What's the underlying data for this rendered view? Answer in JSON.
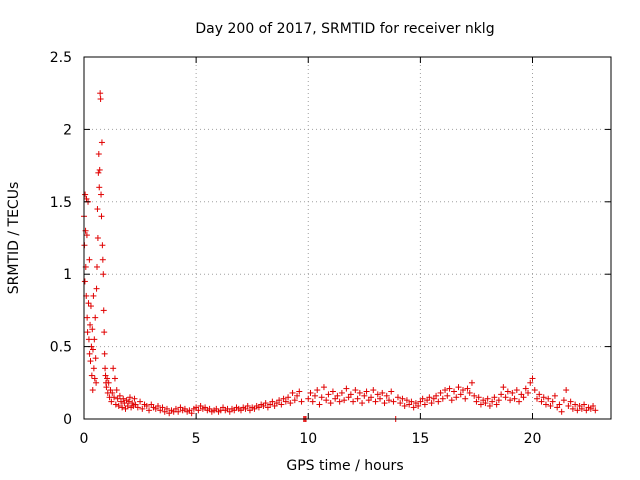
{
  "chart_data": {
    "type": "scatter",
    "title": "Day 200 of 2017, SRMTID for receiver nklg",
    "xlabel": "GPS time / hours",
    "ylabel": "SRMTID / TECUs",
    "xlim": [
      0,
      23.5
    ],
    "ylim": [
      0,
      2.5
    ],
    "xticks": [
      0,
      5,
      10,
      15,
      20
    ],
    "xtick_labels": [
      "0",
      "5",
      "10",
      "15",
      "20"
    ],
    "yticks": [
      0,
      0.5,
      1,
      1.5,
      2,
      2.5
    ],
    "ytick_labels": [
      "0",
      "0.5",
      "1",
      "1.5",
      "2",
      "2.5"
    ],
    "grid": true,
    "marker": "+",
    "color": "#e00000",
    "series": [
      {
        "name": "SRMTID",
        "points": [
          [
            0.0,
            1.4
          ],
          [
            0.02,
            1.2
          ],
          [
            0.04,
            0.95
          ],
          [
            0.05,
            1.55
          ],
          [
            0.07,
            1.3
          ],
          [
            0.08,
            1.05
          ],
          [
            0.1,
            0.85
          ],
          [
            0.11,
            1.52
          ],
          [
            0.13,
            1.27
          ],
          [
            0.14,
            0.7
          ],
          [
            0.16,
            0.6
          ],
          [
            0.18,
            1.5
          ],
          [
            0.2,
            0.8
          ],
          [
            0.22,
            0.55
          ],
          [
            0.24,
            1.1
          ],
          [
            0.25,
            0.45
          ],
          [
            0.27,
            0.65
          ],
          [
            0.29,
            0.4
          ],
          [
            0.31,
            0.78
          ],
          [
            0.33,
            0.5
          ],
          [
            0.35,
            0.3
          ],
          [
            0.37,
            0.62
          ],
          [
            0.39,
            0.2
          ],
          [
            0.4,
            0.48
          ],
          [
            0.42,
            0.85
          ],
          [
            0.44,
            0.35
          ],
          [
            0.46,
            0.55
          ],
          [
            0.48,
            0.28
          ],
          [
            0.5,
            0.7
          ],
          [
            0.52,
            0.42
          ],
          [
            0.54,
            0.25
          ],
          [
            0.56,
            0.9
          ],
          [
            0.58,
            1.05
          ],
          [
            0.6,
            1.45
          ],
          [
            0.62,
            1.25
          ],
          [
            0.64,
            1.7
          ],
          [
            0.66,
            1.83
          ],
          [
            0.68,
            1.6
          ],
          [
            0.7,
            1.72
          ],
          [
            0.72,
            2.25
          ],
          [
            0.74,
            2.21
          ],
          [
            0.76,
            1.55
          ],
          [
            0.78,
            1.4
          ],
          [
            0.8,
            1.91
          ],
          [
            0.82,
            1.2
          ],
          [
            0.84,
            1.1
          ],
          [
            0.86,
            1.0
          ],
          [
            0.88,
            0.75
          ],
          [
            0.9,
            0.6
          ],
          [
            0.92,
            0.45
          ],
          [
            0.94,
            0.35
          ],
          [
            0.96,
            0.3
          ],
          [
            0.98,
            0.25
          ],
          [
            1.0,
            0.22
          ],
          [
            1.03,
            0.28
          ],
          [
            1.06,
            0.18
          ],
          [
            1.1,
            0.25
          ],
          [
            1.14,
            0.15
          ],
          [
            1.18,
            0.2
          ],
          [
            1.22,
            0.12
          ],
          [
            1.26,
            0.18
          ],
          [
            1.3,
            0.35
          ],
          [
            1.34,
            0.15
          ],
          [
            1.38,
            0.28
          ],
          [
            1.42,
            0.1
          ],
          [
            1.46,
            0.2
          ],
          [
            1.5,
            0.14
          ],
          [
            1.55,
            0.09
          ],
          [
            1.6,
            0.16
          ],
          [
            1.65,
            0.12
          ],
          [
            1.7,
            0.08
          ],
          [
            1.75,
            0.14
          ],
          [
            1.8,
            0.11
          ],
          [
            1.85,
            0.07
          ],
          [
            1.9,
            0.13
          ],
          [
            1.95,
            0.09
          ],
          [
            2.0,
            0.12
          ],
          [
            2.05,
            0.15
          ],
          [
            2.1,
            0.08
          ],
          [
            2.15,
            0.11
          ],
          [
            2.2,
            0.09
          ],
          [
            2.25,
            0.14
          ],
          [
            2.3,
            0.1
          ],
          [
            2.4,
            0.08
          ],
          [
            2.5,
            0.12
          ],
          [
            2.6,
            0.07
          ],
          [
            2.7,
            0.1
          ],
          [
            2.8,
            0.09
          ],
          [
            2.9,
            0.06
          ],
          [
            3.0,
            0.1
          ],
          [
            3.1,
            0.08
          ],
          [
            3.2,
            0.07
          ],
          [
            3.3,
            0.09
          ],
          [
            3.4,
            0.06
          ],
          [
            3.5,
            0.08
          ],
          [
            3.6,
            0.05
          ],
          [
            3.7,
            0.07
          ],
          [
            3.8,
            0.04
          ],
          [
            3.9,
            0.06
          ],
          [
            4.0,
            0.05
          ],
          [
            4.1,
            0.07
          ],
          [
            4.2,
            0.05
          ],
          [
            4.3,
            0.08
          ],
          [
            4.4,
            0.06
          ],
          [
            4.5,
            0.07
          ],
          [
            4.6,
            0.05
          ],
          [
            4.7,
            0.06
          ],
          [
            4.8,
            0.04
          ],
          [
            4.9,
            0.07
          ],
          [
            5.0,
            0.08
          ],
          [
            5.1,
            0.06
          ],
          [
            5.2,
            0.09
          ],
          [
            5.3,
            0.07
          ],
          [
            5.4,
            0.08
          ],
          [
            5.5,
            0.06
          ],
          [
            5.6,
            0.07
          ],
          [
            5.7,
            0.05
          ],
          [
            5.8,
            0.06
          ],
          [
            5.9,
            0.07
          ],
          [
            6.0,
            0.05
          ],
          [
            6.1,
            0.06
          ],
          [
            6.2,
            0.08
          ],
          [
            6.3,
            0.06
          ],
          [
            6.4,
            0.07
          ],
          [
            6.5,
            0.05
          ],
          [
            6.6,
            0.07
          ],
          [
            6.7,
            0.06
          ],
          [
            6.8,
            0.08
          ],
          [
            6.9,
            0.07
          ],
          [
            7.0,
            0.06
          ],
          [
            7.1,
            0.08
          ],
          [
            7.2,
            0.07
          ],
          [
            7.3,
            0.09
          ],
          [
            7.4,
            0.06
          ],
          [
            7.5,
            0.08
          ],
          [
            7.6,
            0.07
          ],
          [
            7.7,
            0.09
          ],
          [
            7.8,
            0.08
          ],
          [
            7.9,
            0.1
          ],
          [
            8.0,
            0.09
          ],
          [
            8.1,
            0.11
          ],
          [
            8.2,
            0.08
          ],
          [
            8.3,
            0.1
          ],
          [
            8.4,
            0.12
          ],
          [
            8.5,
            0.09
          ],
          [
            8.6,
            0.11
          ],
          [
            8.7,
            0.13
          ],
          [
            8.8,
            0.1
          ],
          [
            8.9,
            0.14
          ],
          [
            9.0,
            0.12
          ],
          [
            9.1,
            0.15
          ],
          [
            9.2,
            0.11
          ],
          [
            9.3,
            0.18
          ],
          [
            9.4,
            0.13
          ],
          [
            9.5,
            0.16
          ],
          [
            9.6,
            0.19
          ],
          [
            9.7,
            0.12
          ],
          [
            9.8,
            0.0
          ],
          [
            9.85,
            0.0
          ],
          [
            9.9,
            0.0
          ],
          [
            10.0,
            0.14
          ],
          [
            10.1,
            0.18
          ],
          [
            10.2,
            0.12
          ],
          [
            10.3,
            0.16
          ],
          [
            10.4,
            0.2
          ],
          [
            10.5,
            0.1
          ],
          [
            10.6,
            0.15
          ],
          [
            10.7,
            0.22
          ],
          [
            10.8,
            0.13
          ],
          [
            10.9,
            0.17
          ],
          [
            11.0,
            0.11
          ],
          [
            11.1,
            0.19
          ],
          [
            11.2,
            0.14
          ],
          [
            11.3,
            0.16
          ],
          [
            11.4,
            0.12
          ],
          [
            11.5,
            0.18
          ],
          [
            11.6,
            0.13
          ],
          [
            11.7,
            0.21
          ],
          [
            11.8,
            0.15
          ],
          [
            11.9,
            0.17
          ],
          [
            12.0,
            0.12
          ],
          [
            12.1,
            0.2
          ],
          [
            12.2,
            0.14
          ],
          [
            12.3,
            0.18
          ],
          [
            12.4,
            0.11
          ],
          [
            12.5,
            0.16
          ],
          [
            12.6,
            0.19
          ],
          [
            12.7,
            0.13
          ],
          [
            12.8,
            0.15
          ],
          [
            12.9,
            0.2
          ],
          [
            13.0,
            0.12
          ],
          [
            13.1,
            0.17
          ],
          [
            13.2,
            0.14
          ],
          [
            13.3,
            0.18
          ],
          [
            13.4,
            0.11
          ],
          [
            13.5,
            0.16
          ],
          [
            13.6,
            0.13
          ],
          [
            13.7,
            0.19
          ],
          [
            13.8,
            0.12
          ],
          [
            13.9,
            0.0
          ],
          [
            14.0,
            0.15
          ],
          [
            14.1,
            0.11
          ],
          [
            14.2,
            0.14
          ],
          [
            14.3,
            0.09
          ],
          [
            14.4,
            0.13
          ],
          [
            14.5,
            0.1
          ],
          [
            14.6,
            0.12
          ],
          [
            14.7,
            0.08
          ],
          [
            14.8,
            0.11
          ],
          [
            14.9,
            0.09
          ],
          [
            15.0,
            0.12
          ],
          [
            15.1,
            0.14
          ],
          [
            15.2,
            0.1
          ],
          [
            15.3,
            0.13
          ],
          [
            15.4,
            0.15
          ],
          [
            15.5,
            0.11
          ],
          [
            15.6,
            0.14
          ],
          [
            15.7,
            0.16
          ],
          [
            15.8,
            0.12
          ],
          [
            15.9,
            0.18
          ],
          [
            16.0,
            0.14
          ],
          [
            16.1,
            0.2
          ],
          [
            16.2,
            0.16
          ],
          [
            16.3,
            0.21
          ],
          [
            16.4,
            0.13
          ],
          [
            16.5,
            0.19
          ],
          [
            16.6,
            0.15
          ],
          [
            16.7,
            0.22
          ],
          [
            16.8,
            0.17
          ],
          [
            16.9,
            0.2
          ],
          [
            17.0,
            0.14
          ],
          [
            17.1,
            0.21
          ],
          [
            17.2,
            0.18
          ],
          [
            17.3,
            0.25
          ],
          [
            17.4,
            0.16
          ],
          [
            17.5,
            0.12
          ],
          [
            17.6,
            0.15
          ],
          [
            17.7,
            0.1
          ],
          [
            17.8,
            0.13
          ],
          [
            17.9,
            0.11
          ],
          [
            18.0,
            0.14
          ],
          [
            18.1,
            0.09
          ],
          [
            18.2,
            0.12
          ],
          [
            18.3,
            0.15
          ],
          [
            18.4,
            0.1
          ],
          [
            18.5,
            0.13
          ],
          [
            18.6,
            0.17
          ],
          [
            18.7,
            0.22
          ],
          [
            18.8,
            0.15
          ],
          [
            18.9,
            0.19
          ],
          [
            19.0,
            0.13
          ],
          [
            19.1,
            0.18
          ],
          [
            19.2,
            0.14
          ],
          [
            19.3,
            0.2
          ],
          [
            19.4,
            0.12
          ],
          [
            19.5,
            0.17
          ],
          [
            19.6,
            0.15
          ],
          [
            19.7,
            0.21
          ],
          [
            19.8,
            0.18
          ],
          [
            19.9,
            0.25
          ],
          [
            20.0,
            0.28
          ],
          [
            20.1,
            0.2
          ],
          [
            20.2,
            0.14
          ],
          [
            20.3,
            0.17
          ],
          [
            20.4,
            0.12
          ],
          [
            20.5,
            0.15
          ],
          [
            20.6,
            0.1
          ],
          [
            20.7,
            0.14
          ],
          [
            20.8,
            0.09
          ],
          [
            20.9,
            0.12
          ],
          [
            21.0,
            0.16
          ],
          [
            21.1,
            0.08
          ],
          [
            21.2,
            0.1
          ],
          [
            21.3,
            0.05
          ],
          [
            21.4,
            0.13
          ],
          [
            21.5,
            0.2
          ],
          [
            21.6,
            0.09
          ],
          [
            21.7,
            0.12
          ],
          [
            21.8,
            0.07
          ],
          [
            21.9,
            0.1
          ],
          [
            22.0,
            0.06
          ],
          [
            22.1,
            0.09
          ],
          [
            22.2,
            0.07
          ],
          [
            22.3,
            0.1
          ],
          [
            22.4,
            0.06
          ],
          [
            22.5,
            0.08
          ],
          [
            22.6,
            0.07
          ],
          [
            22.7,
            0.09
          ],
          [
            22.8,
            0.06
          ]
        ]
      }
    ]
  }
}
